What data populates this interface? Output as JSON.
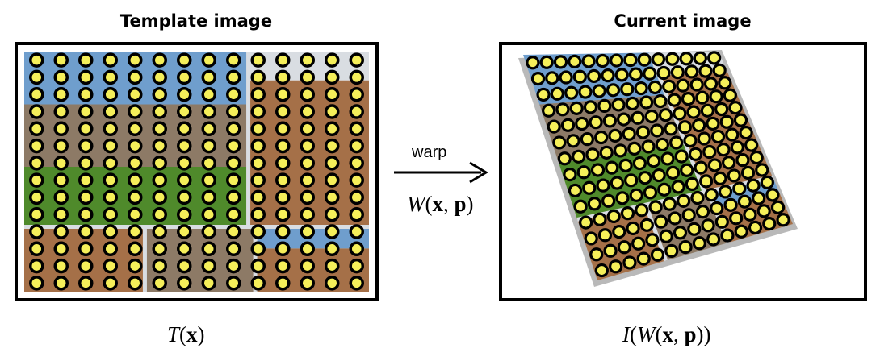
{
  "left_panel": {
    "title": "Template image",
    "caption": {
      "func": "T",
      "arg": "x"
    }
  },
  "right_panel": {
    "title": "Current image",
    "caption": {
      "outer": "I",
      "func": "W",
      "arg1": "x",
      "arg2": "p"
    }
  },
  "arrow": {
    "label": "warp",
    "func": "W",
    "arg1": "x",
    "arg2": "p"
  },
  "colors": {
    "dot_fill": "#f5ef5a",
    "dot_stroke": "#000000",
    "sky": "#6f9ecd",
    "grass": "#4f8a2b",
    "stone": "#8d7a66",
    "brick": "#a57048",
    "divider": "#d9dde2",
    "shadow": "#b9b9b9"
  }
}
